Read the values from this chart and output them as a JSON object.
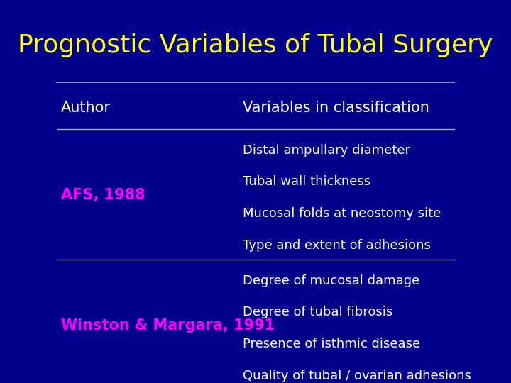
{
  "title": "Prognostic Variables of Tubal Surgery",
  "title_color": "#ffff00",
  "background_color": "#00008B",
  "header_author": "Author",
  "header_variables": "Variables in classification",
  "header_color": "#ffffff",
  "rows": [
    {
      "author": "AFS, 1988",
      "author_color": "#ff00ff",
      "variables": [
        "Distal ampullary diameter",
        "Tubal wall thickness",
        "Mucosal folds at neostomy site",
        "Type and extent of adhesions"
      ]
    },
    {
      "author": "Winston & Margara, 1991",
      "author_color": "#ff00ff",
      "variables": [
        "Degree of mucosal damage",
        "Degree of tubal fibrosis",
        "Presence of isthmic disease",
        "Quality of tubal / ovarian adhesions"
      ]
    }
  ],
  "variable_color": "#ffffff",
  "line_color": "#aaaacc",
  "title_fontsize": 26,
  "header_fontsize": 15,
  "author_fontsize": 15,
  "variable_fontsize": 13
}
